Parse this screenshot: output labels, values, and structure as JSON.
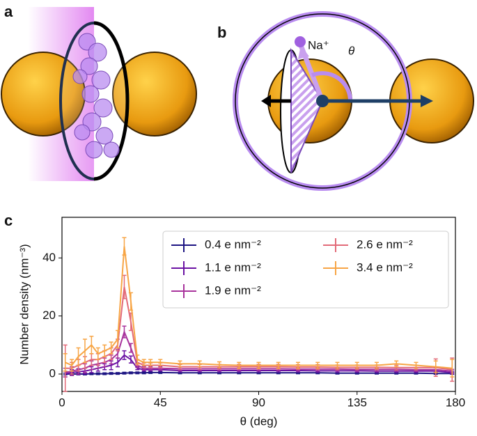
{
  "figure": {
    "panel_labels": [
      "a",
      "b",
      "c"
    ],
    "annotations": [
      "Na⁺",
      "θ"
    ]
  },
  "chart_data": {
    "type": "line",
    "xlabel": "θ (deg)",
    "ylabel": "Number density (nm⁻³)",
    "x": [
      1.5,
      4.5,
      7.5,
      10.5,
      13.5,
      16.5,
      19.5,
      22.5,
      25.5,
      28.5,
      31.5,
      34.5,
      37.5,
      40.5,
      45,
      54,
      63,
      72,
      81,
      90,
      99,
      108,
      117,
      126,
      135,
      144,
      153,
      162,
      171,
      178.5
    ],
    "xlim": [
      0,
      180
    ],
    "xticks": [
      0,
      45,
      90,
      135,
      180
    ],
    "ylim": [
      -6,
      54
    ],
    "yticks": [
      0,
      20,
      40
    ],
    "legend": "upper right",
    "series": [
      {
        "name": "0.4 e nm⁻²",
        "color": "#1c1482",
        "values": [
          0,
          0,
          0,
          0,
          0.1,
          0.1,
          0.1,
          0.2,
          0.2,
          0.3,
          0.4,
          0.4,
          0.4,
          0.5,
          0.5,
          0.4,
          0.4,
          0.4,
          0.4,
          0.4,
          0.4,
          0.4,
          0.4,
          0.3,
          0.3,
          0.3,
          0.3,
          0.3,
          0.2,
          0.2
        ],
        "errors": [
          0.3,
          0.3,
          0.3,
          0.3,
          0.3,
          0.3,
          0.3,
          0.3,
          0.3,
          0.3,
          0.3,
          0.3,
          0.3,
          0.3,
          0.3,
          0.3,
          0.3,
          0.3,
          0.3,
          0.3,
          0.3,
          0.3,
          0.3,
          0.3,
          0.3,
          0.3,
          0.3,
          0.3,
          0.3,
          0.3
        ]
      },
      {
        "name": "1.1 e nm⁻²",
        "color": "#6a11a3",
        "values": [
          0,
          0.5,
          0.8,
          1,
          1.5,
          2,
          2.5,
          3,
          4,
          6.5,
          5,
          2,
          1.5,
          1.5,
          1.5,
          1.2,
          1.2,
          1.2,
          1.2,
          1.2,
          1.2,
          1.2,
          1.1,
          1.1,
          1.1,
          1,
          1,
          1,
          1,
          0.5
        ],
        "errors": [
          1,
          1,
          1,
          1,
          1,
          1,
          1,
          1.5,
          1.5,
          1.5,
          1.2,
          0.5,
          0.5,
          0.5,
          0.5,
          0.5,
          0.5,
          0.5,
          0.5,
          0.5,
          0.5,
          0.5,
          0.5,
          0.5,
          0.5,
          0.5,
          0.5,
          0.5,
          0.5,
          0.5
        ]
      },
      {
        "name": "1.9 e nm⁻²",
        "color": "#a8339c",
        "values": [
          0.5,
          1,
          1.5,
          2,
          3,
          3.5,
          4,
          5,
          7,
          14.5,
          9,
          3,
          2,
          2,
          2,
          1.8,
          1.8,
          1.8,
          1.8,
          1.8,
          1.8,
          1.7,
          1.7,
          1.7,
          1.6,
          1.6,
          1.6,
          1.5,
          1.5,
          1
        ],
        "errors": [
          1.5,
          1.5,
          1.5,
          1.5,
          1.5,
          1.5,
          1.5,
          1.5,
          1.5,
          2,
          1.5,
          0.8,
          0.6,
          0.6,
          0.6,
          0.6,
          0.6,
          0.6,
          0.6,
          0.6,
          0.6,
          0.6,
          0.6,
          0.6,
          0.6,
          0.6,
          0.6,
          0.6,
          0.6,
          0.6
        ]
      },
      {
        "name": "2.6 e nm⁻²",
        "color": "#e26a78",
        "values": [
          2,
          2,
          3,
          4,
          5,
          5,
          6,
          7,
          10,
          30,
          18,
          4,
          3,
          3,
          3,
          2.5,
          2.5,
          2.5,
          2.5,
          2.5,
          2.5,
          2.4,
          2.4,
          2.3,
          2.3,
          2.3,
          2.2,
          2.2,
          2.2,
          1.5
        ],
        "errors": [
          8,
          2,
          2,
          2,
          2,
          2,
          2,
          2,
          2,
          4,
          3,
          1,
          0.8,
          0.8,
          0.8,
          0.8,
          0.8,
          0.8,
          0.8,
          0.8,
          0.8,
          0.8,
          0.8,
          0.8,
          0.8,
          0.8,
          0.8,
          0.8,
          3,
          4
        ]
      },
      {
        "name": "3.4 e nm⁻²",
        "color": "#f7a545",
        "values": [
          4,
          3,
          6,
          8,
          10,
          7,
          8,
          9,
          12,
          44,
          25,
          5,
          4,
          4,
          4,
          3.5,
          3.5,
          3.2,
          3,
          3,
          3,
          3,
          3,
          3,
          3,
          3,
          3.5,
          3,
          2.5,
          2
        ],
        "errors": [
          3,
          2,
          3,
          4,
          3,
          2,
          2,
          2,
          3,
          3,
          3,
          1.5,
          1,
          1,
          1,
          1,
          1,
          1,
          1,
          1,
          1,
          1,
          1,
          1,
          1,
          1,
          1,
          1,
          2,
          3
        ]
      }
    ]
  }
}
